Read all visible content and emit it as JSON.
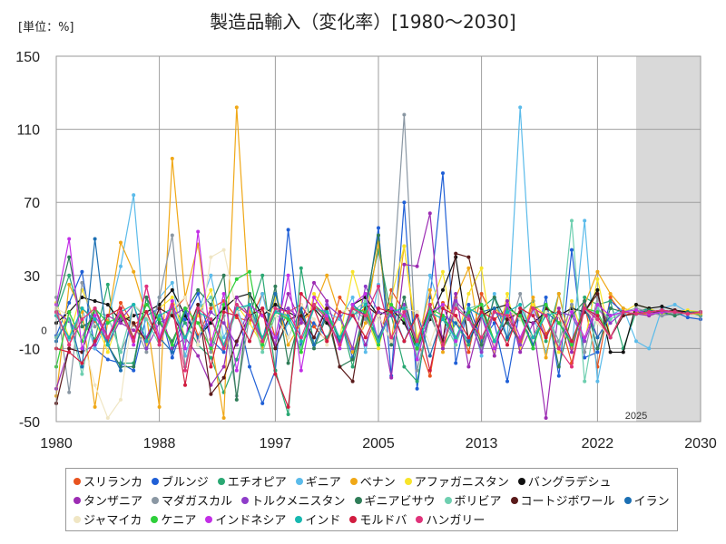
{
  "header": {
    "title": "製造品輸入（変化率）[1980〜2030]",
    "unit": "[単位：%]"
  },
  "chart_data": {
    "type": "line",
    "title": "製造品輸入（変化率）[1980〜2030]",
    "unit_label": "[単位：%]",
    "xlabel": "",
    "ylabel": "",
    "xlim": [
      1980,
      2030
    ],
    "ylim": [
      -50,
      150
    ],
    "x_ticks": [
      "1980",
      "1988",
      "1997",
      "2005",
      "2013",
      "2022",
      "2030"
    ],
    "y_ticks": [
      "150",
      "110",
      "70",
      "30",
      "-10",
      "-50"
    ],
    "zero_label": "0",
    "forecast_start": 2025,
    "forecast_label": "2025",
    "grid": true,
    "legend_position": "bottom",
    "x": [
      1980,
      1981,
      1982,
      1983,
      1984,
      1985,
      1986,
      1987,
      1988,
      1989,
      1990,
      1991,
      1992,
      1993,
      1994,
      1995,
      1996,
      1997,
      1998,
      1999,
      2000,
      2001,
      2002,
      2003,
      2004,
      2005,
      2006,
      2007,
      2008,
      2009,
      2010,
      2011,
      2012,
      2013,
      2014,
      2015,
      2016,
      2017,
      2018,
      2019,
      2020,
      2021,
      2022,
      2023,
      2024,
      2025,
      2026,
      2027,
      2028,
      2029,
      2030
    ],
    "series": [
      {
        "name": "スリランカ",
        "color": "#e8531f",
        "values": [
          10,
          -8,
          12,
          5,
          -6,
          15,
          3,
          8,
          -5,
          10,
          18,
          -3,
          12,
          16,
          7,
          5,
          20,
          -4,
          10,
          14,
          2,
          -6,
          18,
          8,
          12,
          -8,
          22,
          10,
          -5,
          -25,
          15,
          8,
          -12,
          20,
          6,
          12,
          -10,
          16,
          -2,
          8,
          -18,
          14,
          -20,
          18,
          8,
          10,
          9,
          11,
          10,
          9,
          10
        ]
      },
      {
        "name": "ブルンジ",
        "color": "#1f5fd6",
        "values": [
          -3,
          15,
          32,
          -10,
          -16,
          -18,
          -22,
          8,
          12,
          -15,
          6,
          20,
          -5,
          -12,
          14,
          -20,
          -40,
          -22,
          55,
          -8,
          4,
          -4,
          8,
          -15,
          10,
          56,
          -25,
          70,
          -32,
          18,
          86,
          -18,
          14,
          -6,
          4,
          -28,
          12,
          -10,
          18,
          -25,
          44,
          -15,
          -12,
          16,
          10,
          9,
          12,
          8,
          10,
          7,
          6
        ]
      },
      {
        "name": "エチオピア",
        "color": "#2aa873",
        "values": [
          10,
          30,
          5,
          -5,
          25,
          -18,
          -18,
          18,
          -8,
          12,
          4,
          -8,
          -15,
          -34,
          -16,
          8,
          30,
          -22,
          -46,
          34,
          -8,
          -4,
          8,
          -20,
          12,
          44,
          8,
          -20,
          -28,
          10,
          -10,
          4,
          -8,
          12,
          18,
          -5,
          10,
          16,
          -6,
          20,
          -10,
          18,
          14,
          16,
          -10,
          10,
          12,
          9,
          11,
          10,
          8
        ]
      },
      {
        "name": "ギニア",
        "color": "#5bbbea",
        "values": [
          8,
          -5,
          12,
          -10,
          5,
          35,
          74,
          -8,
          18,
          26,
          -14,
          10,
          30,
          -4,
          12,
          -6,
          20,
          -10,
          4,
          12,
          -8,
          10,
          6,
          18,
          -12,
          25,
          -4,
          10,
          -15,
          30,
          8,
          -6,
          12,
          -14,
          20,
          -4,
          122,
          8,
          -12,
          10,
          -10,
          60,
          -28,
          8,
          12,
          -6,
          -10,
          12,
          14,
          10,
          9
        ]
      },
      {
        "name": "ベナン",
        "color": "#f0a817",
        "values": [
          -36,
          25,
          10,
          -42,
          5,
          48,
          32,
          8,
          -42,
          94,
          18,
          47,
          -5,
          -48,
          122,
          10,
          -10,
          20,
          -8,
          4,
          12,
          30,
          8,
          -12,
          4,
          48,
          -6,
          46,
          -8,
          22,
          -12,
          18,
          34,
          -10,
          12,
          6,
          -8,
          18,
          -15,
          20,
          -10,
          14,
          32,
          20,
          12,
          10,
          8,
          11,
          10,
          9,
          9
        ]
      },
      {
        "name": "アファガニスタン",
        "color": "#f7e42a",
        "values": [
          15,
          -4,
          22,
          6,
          -12,
          10,
          4,
          -8,
          12,
          18,
          -4,
          8,
          22,
          -10,
          14,
          4,
          -8,
          18,
          6,
          -12,
          20,
          10,
          -4,
          32,
          8,
          -10,
          18,
          46,
          -4,
          12,
          32,
          -8,
          20,
          34,
          -14,
          20,
          -10,
          14,
          8,
          -12,
          16,
          -6,
          28,
          -4,
          10,
          14,
          12,
          9,
          10,
          11,
          10
        ]
      },
      {
        "name": "バングラデシュ",
        "color": "#111111",
        "values": [
          4,
          10,
          18,
          16,
          14,
          5,
          8,
          10,
          14,
          22,
          8,
          -4,
          4,
          12,
          18,
          20,
          8,
          14,
          10,
          6,
          12,
          4,
          -6,
          14,
          18,
          8,
          12,
          4,
          -10,
          6,
          22,
          40,
          -6,
          8,
          12,
          14,
          6,
          4,
          10,
          8,
          12,
          10,
          22,
          -12,
          -12,
          14,
          12,
          13,
          11,
          10,
          10
        ]
      },
      {
        "name": "タンザニア",
        "color": "#9c2cb3",
        "values": [
          -32,
          -10,
          -12,
          -8,
          8,
          4,
          0,
          -4,
          12,
          -10,
          -4,
          -14,
          -30,
          -20,
          18,
          8,
          12,
          -8,
          20,
          4,
          26,
          16,
          -6,
          10,
          -8,
          12,
          -26,
          36,
          35,
          64,
          -10,
          20,
          -20,
          8,
          -14,
          16,
          -12,
          4,
          -48,
          12,
          -12,
          16,
          -4,
          8,
          10,
          9,
          8,
          10,
          11,
          9,
          10
        ]
      },
      {
        "name": "マダガスカル",
        "color": "#8a97a3",
        "values": [
          18,
          -34,
          26,
          2,
          8,
          -12,
          4,
          -12,
          18,
          52,
          -20,
          14,
          -12,
          8,
          -36,
          8,
          -4,
          12,
          6,
          -10,
          14,
          8,
          -8,
          12,
          6,
          -4,
          12,
          118,
          -22,
          8,
          -8,
          14,
          6,
          -10,
          12,
          -4,
          20,
          -8,
          10,
          -6,
          14,
          -12,
          18,
          -4,
          10,
          12,
          10,
          8,
          9,
          10,
          10
        ]
      },
      {
        "name": "トルクメニスタン",
        "color": "#8e3cc9",
        "values": [
          10,
          5,
          -4,
          12,
          -8,
          6,
          14,
          -10,
          4,
          8,
          12,
          -6,
          10,
          4,
          -8,
          14,
          -6,
          10,
          12,
          6,
          -4,
          14,
          8,
          -10,
          24,
          10,
          8,
          14,
          -6,
          12,
          -4,
          16,
          8,
          -12,
          10,
          6,
          -8,
          12,
          -4,
          10,
          8,
          -6,
          12,
          4,
          10,
          9,
          10,
          11,
          10,
          9,
          10
        ]
      },
      {
        "name": "ギニアビサウ",
        "color": "#2f7d58",
        "values": [
          12,
          40,
          2,
          6,
          -8,
          -20,
          -20,
          18,
          4,
          -6,
          10,
          22,
          14,
          30,
          -38,
          20,
          -6,
          24,
          -18,
          10,
          -10,
          8,
          -20,
          -16,
          14,
          52,
          -8,
          18,
          -10,
          8,
          14,
          -4,
          10,
          -8,
          18,
          4,
          -6,
          12,
          14,
          -20,
          8,
          16,
          -10,
          12,
          10,
          9,
          11,
          10,
          8,
          10,
          10
        ]
      },
      {
        "name": "ボリビア",
        "color": "#6ecfb0",
        "values": [
          -4,
          6,
          -24,
          10,
          8,
          -12,
          14,
          6,
          -8,
          10,
          -6,
          12,
          18,
          -8,
          10,
          14,
          -12,
          8,
          6,
          -10,
          12,
          8,
          -4,
          10,
          16,
          -6,
          12,
          8,
          -14,
          10,
          6,
          -8,
          12,
          14,
          -6,
          10,
          8,
          -4,
          12,
          -10,
          60,
          -28,
          12,
          6,
          10,
          9,
          10,
          11,
          10,
          9,
          10
        ]
      },
      {
        "name": "コートジボワール",
        "color": "#5a1a1a",
        "values": [
          -40,
          -10,
          -12,
          12,
          -4,
          8,
          4,
          -6,
          12,
          8,
          -4,
          14,
          -35,
          -26,
          -6,
          8,
          12,
          -10,
          6,
          8,
          -4,
          12,
          -20,
          -28,
          14,
          8,
          -6,
          12,
          -10,
          14,
          -6,
          42,
          40,
          12,
          -8,
          6,
          10,
          -4,
          12,
          8,
          -6,
          10,
          20,
          -4,
          8,
          9,
          10,
          10,
          11,
          9,
          10
        ]
      },
      {
        "name": "イラン",
        "color": "#1b6fb3",
        "values": [
          -6,
          8,
          -20,
          50,
          -8,
          -22,
          14,
          8,
          -4,
          -12,
          10,
          -4,
          6,
          -10,
          14,
          8,
          -6,
          20,
          -4,
          12,
          -8,
          10,
          -6,
          14,
          8,
          -4,
          12,
          -6,
          10,
          -14,
          8,
          4,
          -6,
          10,
          12,
          -4,
          8,
          -8,
          10,
          4,
          -6,
          12,
          -4,
          8,
          10,
          9,
          10,
          11,
          10,
          9,
          10
        ]
      },
      {
        "name": "ジャマイカ",
        "color": "#f0e6c4",
        "values": [
          12,
          8,
          -4,
          -30,
          -48,
          -38,
          14,
          8,
          -4,
          12,
          18,
          -8,
          40,
          44,
          10,
          -6,
          12,
          8,
          -4,
          14,
          6,
          -8,
          10,
          12,
          -4,
          8,
          -6,
          12,
          10,
          -8,
          14,
          6,
          -4,
          10,
          -8,
          12,
          6,
          -4,
          10,
          8,
          -6,
          12,
          4,
          -4,
          10,
          9,
          10,
          11,
          10,
          9,
          10
        ]
      },
      {
        "name": "ケニア",
        "color": "#2ecf3a",
        "values": [
          -20,
          10,
          -6,
          12,
          4,
          8,
          -4,
          14,
          6,
          -8,
          12,
          4,
          -10,
          14,
          28,
          32,
          -8,
          10,
          6,
          -12,
          14,
          8,
          -4,
          12,
          10,
          -8,
          14,
          6,
          -10,
          12,
          8,
          -4,
          10,
          14,
          -6,
          12,
          8,
          -10,
          14,
          4,
          -8,
          12,
          10,
          -4,
          10,
          9,
          10,
          11,
          10,
          9,
          10
        ]
      },
      {
        "name": "インドネシア",
        "color": "#c22ee6",
        "values": [
          14,
          50,
          -10,
          8,
          -4,
          12,
          -8,
          24,
          -4,
          16,
          -10,
          54,
          -8,
          20,
          -22,
          14,
          8,
          -4,
          30,
          -22,
          18,
          8,
          -10,
          14,
          20,
          -6,
          12,
          8,
          -16,
          10,
          14,
          -6,
          12,
          8,
          -10,
          14,
          -4,
          12,
          8,
          -10,
          10,
          -4,
          14,
          8,
          10,
          11,
          9,
          10,
          10,
          9,
          10
        ]
      },
      {
        "name": "インド",
        "color": "#17b8b0",
        "values": [
          8,
          -4,
          12,
          6,
          -8,
          10,
          14,
          -6,
          8,
          12,
          -4,
          10,
          6,
          -8,
          12,
          14,
          -4,
          10,
          8,
          -6,
          12,
          10,
          -4,
          8,
          14,
          -6,
          10,
          12,
          -8,
          10,
          6,
          -4,
          12,
          8,
          -6,
          10,
          14,
          -4,
          8,
          10,
          -6,
          12,
          8,
          -4,
          10,
          9,
          10,
          11,
          10,
          9,
          10
        ]
      },
      {
        "name": "モルドバ",
        "color": "#d11c3f",
        "values": [
          -10,
          -12,
          -18,
          -6,
          8,
          12,
          -4,
          10,
          -6,
          14,
          -30,
          12,
          -20,
          10,
          8,
          -6,
          12,
          -24,
          -42,
          20,
          12,
          -6,
          10,
          8,
          -4,
          12,
          10,
          -6,
          8,
          -22,
          12,
          8,
          -4,
          10,
          6,
          -8,
          12,
          8,
          -4,
          10,
          -6,
          12,
          8,
          -4,
          10,
          9,
          10,
          11,
          10,
          9,
          10
        ]
      },
      {
        "name": "ハンガリー",
        "color": "#e0337a",
        "values": [
          10,
          -8,
          6,
          12,
          -4,
          10,
          -6,
          24,
          -8,
          14,
          -22,
          12,
          6,
          -10,
          14,
          8,
          -6,
          12,
          10,
          -4,
          14,
          6,
          -8,
          12,
          8,
          24,
          -4,
          10,
          -6,
          14,
          -8,
          12,
          6,
          -4,
          10,
          8,
          -6,
          12,
          8,
          -10,
          -20,
          12,
          6,
          -4,
          10,
          9,
          10,
          11,
          10,
          9,
          10
        ]
      }
    ]
  }
}
